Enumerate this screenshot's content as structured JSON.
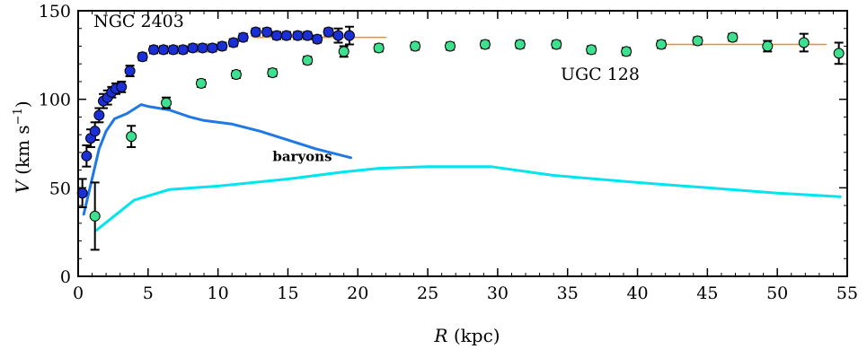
{
  "chart_data": {
    "type": "scatter",
    "xlabel_symbol": "R",
    "xlabel_unit": "(kpc)",
    "ylabel_symbol": "V",
    "ylabel_unit": "(km s",
    "ylabel_sup": "−1",
    "ylabel_close": ")",
    "xlim": [
      0,
      55
    ],
    "ylim": [
      0,
      150
    ],
    "xticks": [
      0,
      5,
      10,
      15,
      20,
      25,
      30,
      35,
      40,
      45,
      50,
      55
    ],
    "yticks": [
      0,
      50,
      100,
      150
    ],
    "grid": false,
    "annotations": [
      {
        "text": "NGC 2403",
        "x": 1.1,
        "y": 141
      },
      {
        "text": "UGC 128",
        "x": 34.5,
        "y": 111
      },
      {
        "text": "baryons",
        "x": 13.9,
        "y": 65,
        "bold": true
      }
    ],
    "series": [
      {
        "name": "NGC 2403",
        "kind": "points",
        "color": "#1a2fd6",
        "x": [
          0.3,
          0.6,
          0.9,
          1.2,
          1.5,
          1.8,
          2.1,
          2.4,
          2.7,
          3.1,
          3.7,
          4.6,
          5.4,
          6.1,
          6.8,
          7.5,
          8.2,
          8.9,
          9.6,
          10.3,
          11.1,
          11.8,
          12.7,
          13.5,
          14.2,
          14.9,
          15.7,
          16.4,
          17.1,
          17.9,
          18.6,
          19.4
        ],
        "y": [
          47,
          68,
          78,
          82,
          91,
          99,
          101,
          104,
          106,
          107,
          116,
          124,
          128,
          128,
          128,
          128,
          129,
          129,
          129,
          130,
          132,
          135,
          138,
          138,
          136,
          136,
          136,
          136,
          134,
          138,
          136,
          136
        ],
        "err": [
          8,
          6,
          5,
          5,
          4,
          4,
          4,
          3,
          3,
          3,
          3,
          2,
          2,
          2,
          2,
          2,
          2,
          2,
          2,
          2,
          2,
          2,
          2,
          2,
          2,
          2,
          2,
          2,
          2,
          2,
          4,
          5
        ]
      },
      {
        "name": "UGC 128",
        "kind": "points",
        "color": "#3de08e",
        "x": [
          1.2,
          3.8,
          6.3,
          8.8,
          11.3,
          13.9,
          16.4,
          19.0,
          21.5,
          24.1,
          26.6,
          29.1,
          31.6,
          34.2,
          36.7,
          39.2,
          41.7,
          44.3,
          46.8,
          49.3,
          51.9,
          54.4
        ],
        "y": [
          34,
          79,
          98,
          109,
          114,
          115,
          122,
          127,
          129,
          130,
          130,
          131,
          131,
          131,
          128,
          127,
          131,
          133,
          135,
          130,
          132,
          126
        ],
        "err": [
          19,
          6,
          3,
          2,
          2,
          2,
          2,
          3,
          2,
          2,
          2,
          2,
          2,
          2,
          2,
          2,
          2,
          2,
          2,
          3,
          5,
          6
        ]
      },
      {
        "name": "baryons",
        "kind": "line",
        "color": "#1f78e6",
        "x": [
          0.4,
          1.5,
          2.0,
          2.6,
          3.5,
          4.5,
          5.0,
          6.5,
          8.0,
          9.0,
          11.0,
          13.0,
          15.0,
          17.0,
          19.5
        ],
        "y": [
          35,
          72,
          82,
          89,
          92,
          97,
          96,
          94,
          90,
          88,
          86,
          82,
          77,
          72,
          67
        ]
      },
      {
        "kind": "line",
        "color": "#00e5f0",
        "x": [
          1.3,
          4.0,
          6.5,
          10.0,
          15.0,
          19.0,
          21.5,
          25.0,
          29.5,
          34.0,
          40.0,
          45.0,
          50.0,
          54.5
        ],
        "y": [
          26,
          43,
          49,
          51,
          55,
          59,
          61,
          62,
          62,
          57,
          53,
          50,
          47,
          45
        ]
      },
      {
        "kind": "line",
        "color": "#ff8c1a",
        "x": [
          12.5,
          22.0
        ],
        "y": [
          135,
          135
        ]
      },
      {
        "kind": "line",
        "color": "#ff8c1a",
        "x": [
          41.5,
          53.5
        ],
        "y": [
          131,
          131
        ]
      }
    ]
  }
}
